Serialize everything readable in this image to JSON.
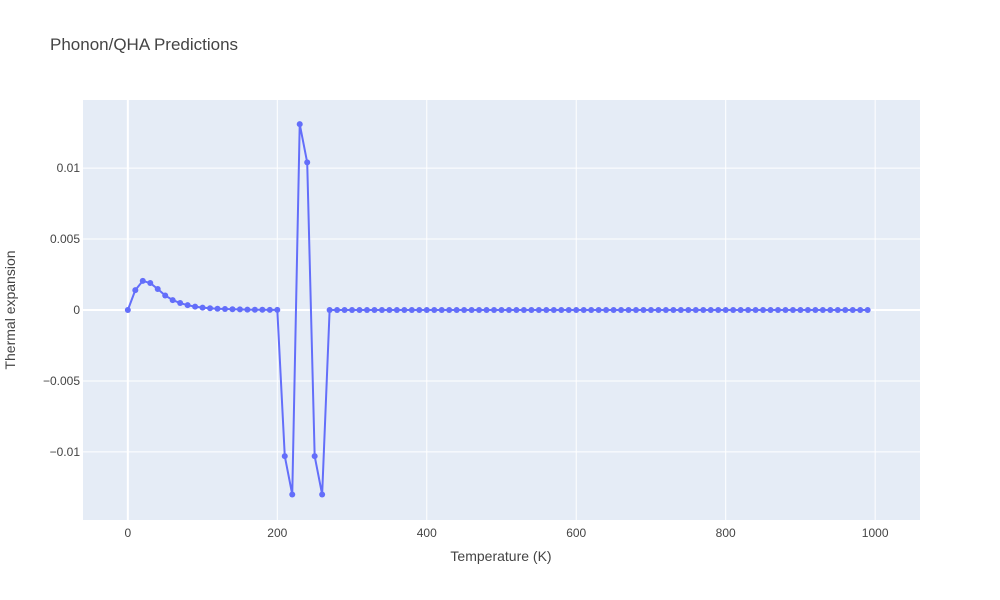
{
  "chart_data": {
    "type": "line",
    "title": "Phonon/QHA Predictions",
    "xlabel": "Temperature (K)",
    "ylabel": "Thermal expansion",
    "xlim": [
      -60,
      1060
    ],
    "ylim": [
      -0.0148,
      0.0148
    ],
    "x_ticks": [
      0,
      200,
      400,
      600,
      800,
      1000
    ],
    "x_tick_labels": [
      "0",
      "200",
      "400",
      "600",
      "800",
      "1000"
    ],
    "y_ticks": [
      -0.01,
      -0.005,
      0,
      0.005,
      0.01
    ],
    "y_tick_labels": [
      "−0.01",
      "−0.005",
      "0",
      "0.005",
      "0.01"
    ],
    "grid": true,
    "colors": {
      "line": "#636efa",
      "plot_bg": "#e5ecf6",
      "grid": "#ffffff",
      "text": "#444444"
    },
    "series": [
      {
        "mode": "lines+markers",
        "x": [
          0,
          10,
          20,
          30,
          40,
          50,
          60,
          70,
          80,
          90,
          100,
          110,
          120,
          130,
          140,
          150,
          160,
          170,
          180,
          190,
          200,
          210,
          220,
          230,
          240,
          250,
          260,
          270,
          280,
          290,
          300,
          310,
          320,
          330,
          340,
          350,
          360,
          370,
          380,
          390,
          400,
          410,
          420,
          430,
          440,
          450,
          460,
          470,
          480,
          490,
          500,
          510,
          520,
          530,
          540,
          550,
          560,
          570,
          580,
          590,
          600,
          610,
          620,
          630,
          640,
          650,
          660,
          670,
          680,
          690,
          700,
          710,
          720,
          730,
          740,
          750,
          760,
          770,
          780,
          790,
          800,
          810,
          820,
          830,
          840,
          850,
          860,
          870,
          880,
          890,
          900,
          910,
          920,
          930,
          940,
          950,
          960,
          970,
          980,
          990
        ],
        "y": [
          0,
          0.0014,
          0.00205,
          0.0019,
          0.00148,
          0.00102,
          0.0007,
          0.00049,
          0.00034,
          0.00024,
          0.00017,
          0.00012,
          9e-05,
          7e-05,
          5e-05,
          4e-05,
          3e-05,
          2e-05,
          2e-05,
          1e-05,
          1e-05,
          -0.0103,
          -0.013,
          0.0131,
          0.0104,
          -0.0103,
          -0.013,
          0,
          0,
          0,
          0,
          0,
          0,
          0,
          0,
          0,
          0,
          0,
          0,
          0,
          0,
          0,
          0,
          0,
          0,
          0,
          0,
          0,
          0,
          0,
          0,
          0,
          0,
          0,
          0,
          0,
          0,
          0,
          0,
          0,
          0,
          0,
          0,
          0,
          0,
          0,
          0,
          0,
          0,
          0,
          0,
          0,
          0,
          0,
          0,
          0,
          0,
          0,
          0,
          0,
          0,
          0,
          0,
          0,
          0,
          0,
          0,
          0,
          0,
          0,
          0,
          0,
          0,
          0,
          0,
          0,
          0,
          0,
          0,
          0
        ]
      }
    ]
  }
}
